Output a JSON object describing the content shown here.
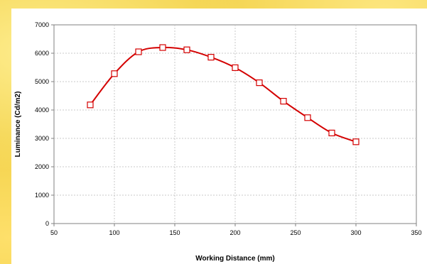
{
  "chart_data": {
    "type": "line",
    "title": "",
    "xlabel": "Working Distance (mm)",
    "ylabel": "Luminance (Cd/m2)",
    "xlim": [
      50,
      350
    ],
    "ylim": [
      0,
      7000
    ],
    "x_ticks": [
      50,
      100,
      150,
      200,
      250,
      300,
      350
    ],
    "y_ticks": [
      0,
      1000,
      2000,
      3000,
      4000,
      5000,
      6000,
      7000
    ],
    "grid": true,
    "legend": "none",
    "series": [
      {
        "x": [
          80,
          100,
          120,
          140,
          160,
          180,
          200,
          220,
          240,
          260,
          280,
          300
        ],
        "values": [
          4180,
          5280,
          6050,
          6200,
          6120,
          5860,
          5490,
          4960,
          4310,
          3730,
          3190,
          2880
        ],
        "color": "#d40000",
        "marker": "square-open"
      }
    ]
  }
}
